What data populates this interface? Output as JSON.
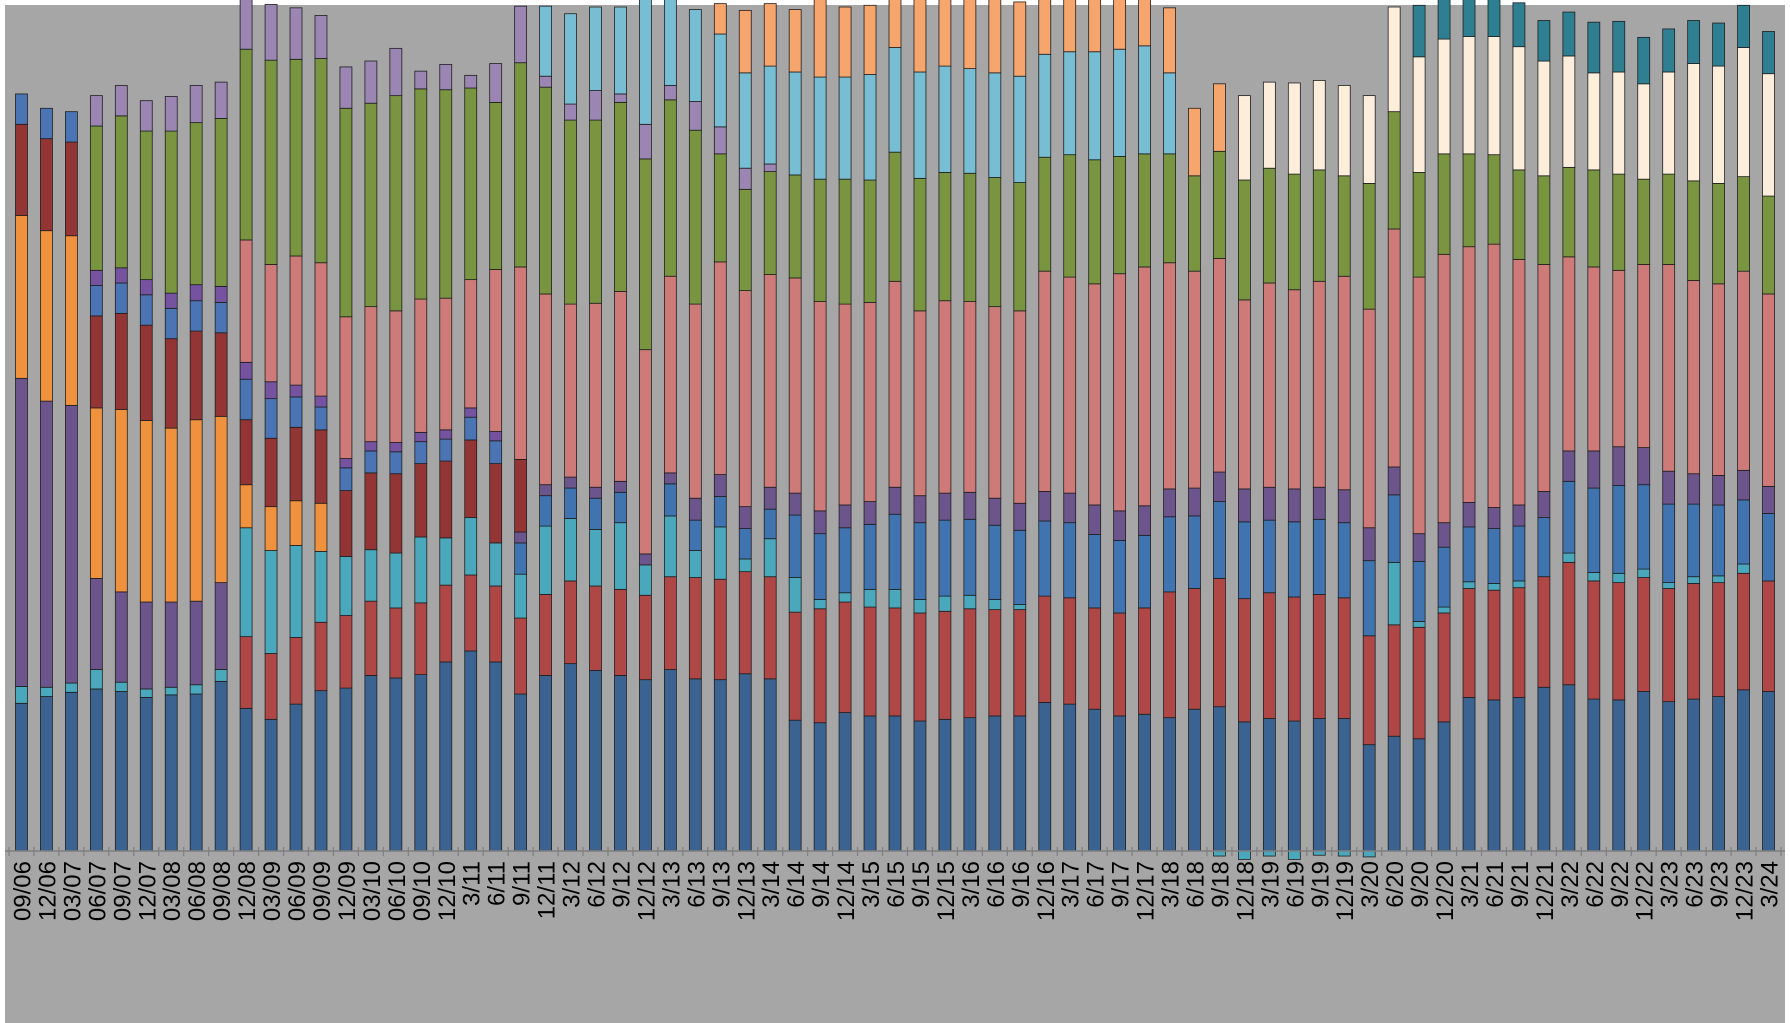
{
  "chart_data": {
    "type": "bar",
    "stacked": true,
    "stack_mode": "percent",
    "ylim": [
      0,
      100
    ],
    "grid": false,
    "legend": "none",
    "title": "",
    "xlabel": "",
    "ylabel": "",
    "colors": {
      "plot_background": "#a6a6a6",
      "axis": "#7f7f7f",
      "bar_outline": "#1f1f1f"
    },
    "categories": [
      "09/06",
      "12/06",
      "03/07",
      "06/07",
      "09/07",
      "12/07",
      "03/08",
      "06/08",
      "09/08",
      "12/08",
      "03/09",
      "06/09",
      "09/09",
      "12/09",
      "03/10",
      "06/10",
      "09/10",
      "12/10",
      "3/11",
      "6/11",
      "9/11",
      "12/11",
      "3/12",
      "6/12",
      "9/12",
      "12/12",
      "3/13",
      "6/13",
      "9/13",
      "12/13",
      "3/14",
      "6/14",
      "9/14",
      "12/14",
      "3/15",
      "6/15",
      "9/15",
      "12/15",
      "3/16",
      "6/16",
      "9/16",
      "12/16",
      "3/17",
      "6/17",
      "9/17",
      "12/17",
      "3/18",
      "6/18",
      "9/18",
      "12/18",
      "3/19",
      "6/19",
      "9/19",
      "12/19",
      "3/20",
      "6/20",
      "9/20",
      "12/20",
      "3/21",
      "6/21",
      "9/21",
      "12/21",
      "3/22",
      "6/22",
      "9/22",
      "12/22",
      "3/23",
      "6/23",
      "9/23",
      "12/23",
      "3/24"
    ],
    "series": [
      {
        "color": "#3b6391",
        "values": [
          17.5,
          18.3,
          18.8,
          19.2,
          18.9,
          18.2,
          18.5,
          18.6,
          20.1,
          16.9,
          15.6,
          17.4,
          19.0,
          19.3,
          20.8,
          20.5,
          20.9,
          22.4,
          23.7,
          22.4,
          18.6,
          20.8,
          22.2,
          21.4,
          20.8,
          20.3,
          21.5,
          20.4,
          20.3,
          21.0,
          20.4,
          15.5,
          15.2,
          16.4,
          16.0,
          16.0,
          15.4,
          15.6,
          15.8,
          16.0,
          16.0,
          17.6,
          17.4,
          16.8,
          16.0,
          16.2,
          15.8,
          16.8,
          17.1,
          15.3,
          15.7,
          15.4,
          15.7,
          15.7,
          12.6,
          13.6,
          13.3,
          15.3,
          18.2,
          17.9,
          18.2,
          19.4,
          19.7,
          18.0,
          17.9,
          18.9,
          17.7,
          18.0,
          18.3,
          19.1,
          18.9
        ]
      },
      {
        "color": "#b04747",
        "values": [
          0,
          0,
          0,
          0,
          0,
          0,
          0,
          0,
          0,
          8.5,
          7.8,
          7.9,
          8.1,
          8.6,
          8.8,
          8.3,
          8.5,
          9.1,
          9.0,
          9.0,
          9.0,
          9.6,
          9.8,
          10.0,
          10.2,
          10.0,
          11.0,
          12.0,
          11.9,
          12.1,
          12.1,
          12.8,
          13.5,
          13.1,
          12.9,
          12.8,
          12.8,
          12.8,
          12.9,
          12.6,
          12.6,
          12.6,
          12.6,
          12.0,
          12.2,
          12.6,
          14.9,
          14.3,
          15.2,
          14.6,
          14.9,
          14.7,
          14.7,
          14.3,
          12.9,
          13.2,
          13.2,
          12.9,
          12.9,
          13.0,
          13.0,
          13.1,
          14.5,
          14.0,
          13.9,
          13.5,
          13.4,
          13.7,
          13.5,
          13.8,
          13.1
        ]
      },
      {
        "color": "#4aa8bc",
        "values": [
          2.0,
          1.1,
          1.1,
          2.3,
          1.1,
          1.0,
          0.9,
          1.1,
          1.4,
          12.9,
          12.2,
          10.9,
          8.4,
          7.0,
          6.1,
          6.5,
          7.8,
          5.6,
          6.8,
          5.1,
          5.2,
          8.1,
          7.4,
          6.7,
          7.9,
          3.6,
          7.2,
          3.2,
          6.2,
          1.5,
          4.5,
          4.1,
          1.1,
          1.1,
          2.1,
          2.2,
          1.6,
          1.8,
          1.6,
          1.2,
          0.6,
          0,
          0,
          0,
          0,
          0,
          0,
          0,
          -0.6,
          -1.0,
          -0.6,
          -1.0,
          -0.5,
          -0.6,
          -0.7,
          7.4,
          0.7,
          0.7,
          0.8,
          0.8,
          0.8,
          0,
          1.1,
          1.0,
          1.1,
          1.0,
          0.7,
          0.8,
          0.8,
          1.1,
          0
        ]
      },
      {
        "color": "#3f74b0",
        "values": [
          0,
          0,
          0,
          0,
          0,
          0,
          0,
          0,
          0,
          0,
          0,
          0,
          0,
          0,
          0,
          0,
          0,
          0,
          0,
          0,
          3.7,
          3.6,
          3.6,
          3.7,
          3.6,
          0,
          3.8,
          3.6,
          3.6,
          3.6,
          3.5,
          7.4,
          7.8,
          7.7,
          7.7,
          8.9,
          9.1,
          9.0,
          9.0,
          8.8,
          8.8,
          8.9,
          8.9,
          8.7,
          8.6,
          8.6,
          8.9,
          8.6,
          9.1,
          9.1,
          8.6,
          8.9,
          8.9,
          8.9,
          8.9,
          8.0,
          7.1,
          7.1,
          6.5,
          6.5,
          6.5,
          7.0,
          8.5,
          10.0,
          10.4,
          10.0,
          9.3,
          8.6,
          8.4,
          7.6,
          8.0
        ]
      },
      {
        "color": "#6c548c",
        "values": [
          36.5,
          33.9,
          32.9,
          10.8,
          10.7,
          10.3,
          10.1,
          9.9,
          10.3,
          0,
          0,
          0,
          0,
          0,
          0,
          0,
          0,
          0,
          0,
          0,
          1.3,
          1.3,
          1.3,
          1.3,
          1.3,
          1.3,
          1.3,
          2.6,
          2.6,
          2.6,
          2.6,
          2.6,
          2.7,
          2.7,
          2.7,
          3.2,
          3.2,
          3.2,
          3.2,
          3.2,
          3.2,
          3.5,
          3.5,
          3.5,
          3.5,
          3.5,
          3.3,
          3.3,
          3.5,
          3.9,
          3.9,
          3.9,
          3.8,
          3.9,
          3.9,
          3.3,
          3.3,
          2.9,
          2.9,
          2.5,
          2.5,
          3.1,
          3.6,
          4.4,
          4.6,
          4.4,
          3.9,
          3.6,
          3.5,
          3.5,
          3.2
        ]
      },
      {
        "color": "#f0913d",
        "values": [
          19.3,
          20.2,
          20.1,
          20.2,
          21.6,
          21.5,
          20.6,
          21.5,
          19.7,
          5.1,
          5.2,
          5.3,
          5.7,
          0,
          0,
          0,
          0,
          0,
          0,
          0,
          0,
          0,
          0,
          0,
          0,
          0,
          0,
          0,
          0,
          0,
          0,
          0,
          0,
          0,
          0,
          0,
          0,
          0,
          0,
          0,
          0,
          0,
          0,
          0,
          0,
          0,
          0,
          0,
          0,
          0,
          0,
          0,
          0,
          0,
          0,
          0,
          0,
          0,
          0,
          0,
          0,
          0,
          0,
          0,
          0,
          0,
          0,
          0,
          0,
          0,
          0
        ]
      },
      {
        "color": "#943535",
        "values": [
          10.8,
          10.9,
          11.1,
          10.9,
          11.4,
          11.3,
          10.6,
          10.5,
          9.9,
          7.7,
          8.1,
          8.7,
          8.7,
          7.8,
          9.1,
          9.4,
          8.7,
          9.1,
          9.2,
          9.4,
          8.6,
          0,
          0,
          0,
          0,
          0,
          0,
          0,
          0,
          0,
          0,
          0,
          0,
          0,
          0,
          0,
          0,
          0,
          0,
          0,
          0,
          0,
          0,
          0,
          0,
          0,
          0,
          0,
          0,
          0,
          0,
          0,
          0,
          0,
          0,
          0,
          0,
          0,
          0,
          0,
          0,
          0,
          0,
          0,
          0,
          0,
          0,
          0,
          0,
          0,
          0
        ]
      },
      {
        "color": "#4a74b4",
        "values": [
          3.6,
          3.6,
          3.6,
          3.6,
          3.6,
          3.6,
          3.6,
          3.6,
          3.6,
          4.8,
          4.7,
          3.6,
          2.7,
          2.7,
          2.6,
          2.6,
          2.6,
          2.6,
          2.7,
          2.7,
          0,
          0,
          0,
          0,
          0,
          0,
          0,
          0,
          0,
          0,
          0,
          0,
          0,
          0,
          0,
          0,
          0,
          0,
          0,
          0,
          0,
          0,
          0,
          0,
          0,
          0,
          0,
          0,
          0,
          0,
          0,
          0,
          0,
          0,
          0,
          0,
          0,
          0,
          0,
          0,
          0,
          0,
          0,
          0,
          0,
          0,
          0,
          0,
          0,
          0,
          0
        ]
      },
      {
        "color": "#7553a0",
        "values": [
          0,
          0,
          0,
          1.8,
          1.8,
          1.8,
          1.8,
          1.9,
          1.9,
          2.0,
          2.0,
          1.4,
          1.3,
          1.1,
          1.1,
          1.1,
          1.1,
          1.1,
          1.1,
          1.1,
          0,
          0,
          0,
          0,
          0,
          0,
          0,
          0,
          0,
          0,
          0,
          0,
          0,
          0,
          0,
          0,
          0,
          0,
          0,
          0,
          0,
          0,
          0,
          0,
          0,
          0,
          0,
          0,
          0,
          0,
          0,
          0,
          0,
          0,
          0,
          0,
          0,
          0,
          0,
          0,
          0,
          0,
          0,
          0,
          0,
          0,
          0,
          0,
          0,
          0,
          0
        ]
      },
      {
        "color": "#cd7a78",
        "values": [
          0,
          0,
          0,
          0,
          0,
          0,
          0,
          0,
          0,
          14.5,
          13.9,
          15.3,
          15.8,
          16.8,
          16.0,
          15.6,
          15.8,
          15.6,
          15.2,
          19.2,
          22.8,
          22.6,
          20.5,
          21.8,
          22.5,
          24.2,
          23.3,
          23.0,
          25.2,
          25.6,
          25.2,
          25.5,
          24.8,
          23.8,
          23.6,
          24.4,
          21.9,
          22.8,
          22.6,
          22.7,
          22.8,
          26.1,
          25.6,
          26.2,
          28.1,
          28.3,
          26.8,
          25.7,
          25.3,
          22.4,
          24.2,
          23.6,
          24.4,
          25.3,
          25.9,
          28.2,
          30.4,
          31.8,
          30.3,
          31.2,
          29.1,
          26.9,
          23.0,
          21.8,
          20.9,
          21.7,
          24.5,
          22.9,
          22.7,
          23.6,
          22.8
        ]
      },
      {
        "color": "#799540",
        "values": [
          0,
          0,
          0,
          17.1,
          18.0,
          17.6,
          19.2,
          19.2,
          19.9,
          22.6,
          24.2,
          23.3,
          24.2,
          24.7,
          24.1,
          25.5,
          24.9,
          24.7,
          22.7,
          19.8,
          24.2,
          24.5,
          21.8,
          21.7,
          22.4,
          22.6,
          20.9,
          20.6,
          12.8,
          12.0,
          12.2,
          12.2,
          14.5,
          14.8,
          14.5,
          15.3,
          15.7,
          15.2,
          15.2,
          15.3,
          15.2,
          13.5,
          14.5,
          14.7,
          13.9,
          13.4,
          12.9,
          11.3,
          12.7,
          14.2,
          13.6,
          13.7,
          13.2,
          11.9,
          14.9,
          13.9,
          12.4,
          11.9,
          11.0,
          10.6,
          10.6,
          10.5,
          10.6,
          11.5,
          11.4,
          10.1,
          10.7,
          11.8,
          11.9,
          11.2,
          11.6
        ]
      },
      {
        "color": "#9a85b3",
        "values": [
          0,
          0,
          0,
          3.6,
          3.6,
          3.6,
          4.1,
          4.4,
          4.3,
          6.2,
          6.6,
          6.1,
          5.1,
          4.9,
          5.0,
          5.6,
          2.1,
          3.0,
          1.5,
          4.6,
          6.7,
          1.3,
          1.9,
          3.5,
          1.0,
          4.1,
          1.7,
          3.4,
          3.2,
          2.5,
          0.9,
          0,
          0,
          0,
          0,
          0,
          0,
          0,
          0,
          0,
          0,
          0,
          0,
          0,
          0,
          0,
          0,
          0,
          0,
          0,
          0,
          0,
          0,
          0,
          0,
          0,
          0,
          0,
          0,
          0,
          0,
          0,
          0,
          0,
          0,
          0,
          0,
          0,
          0,
          0,
          0
        ]
      },
      {
        "color": "#77bdd3",
        "values": [
          0,
          0,
          0,
          0,
          0,
          0,
          0,
          0,
          0,
          0,
          0,
          0,
          0,
          0,
          0,
          0,
          0,
          0,
          0,
          0,
          0,
          8.3,
          10.7,
          9.9,
          10.3,
          15.9,
          10.5,
          10.9,
          11.0,
          11.3,
          11.6,
          12.2,
          12.1,
          12.1,
          12.5,
          12.4,
          12.6,
          12.6,
          12.4,
          12.4,
          12.6,
          12.2,
          12.2,
          12.8,
          12.7,
          12.8,
          9.6,
          0,
          0,
          0,
          0,
          0,
          0,
          0,
          0,
          0,
          0,
          0,
          0,
          0,
          0,
          0,
          0,
          0,
          0,
          0,
          0,
          0,
          0,
          0,
          0
        ]
      },
      {
        "color": "#f6a56d",
        "values": [
          0,
          0,
          0,
          0,
          0,
          0,
          0,
          0,
          0,
          0,
          0,
          0,
          0,
          0,
          0,
          0,
          0,
          0,
          0,
          0,
          0,
          0,
          0,
          0,
          0,
          0,
          0,
          0,
          3.6,
          7.4,
          7.4,
          7.4,
          9.2,
          8.3,
          8.2,
          8.2,
          8.7,
          8.6,
          9.2,
          9.4,
          8.8,
          8.9,
          8.8,
          8.5,
          7.7,
          7.7,
          7.7,
          8.0,
          8.0,
          0,
          0,
          0,
          0,
          0,
          0,
          0,
          0,
          0,
          0,
          0,
          0,
          0,
          0,
          0,
          0,
          0,
          0,
          0,
          0,
          0,
          0
        ]
      },
      {
        "color": "#fdeedc",
        "values": [
          0,
          0,
          0,
          0,
          0,
          0,
          0,
          0,
          0,
          0,
          0,
          0,
          0,
          0,
          0,
          0,
          0,
          0,
          0,
          0,
          0,
          0,
          0,
          0,
          0,
          0,
          0,
          0,
          0,
          0,
          0,
          0,
          0,
          0,
          0,
          0,
          0,
          0,
          0,
          0,
          0,
          0,
          0,
          0,
          0,
          0,
          0,
          0,
          0,
          10.0,
          10.2,
          10.8,
          10.6,
          10.7,
          10.4,
          12.4,
          13.7,
          13.6,
          13.9,
          14.0,
          14.6,
          13.6,
          13.2,
          11.5,
          12.1,
          11.3,
          12.1,
          13.9,
          13.9,
          15.3,
          14.5
        ]
      },
      {
        "color": "#2f7f93",
        "values": [
          0,
          0,
          0,
          0,
          0,
          0,
          0,
          0,
          0,
          0,
          0,
          0,
          0,
          0,
          0,
          0,
          0,
          0,
          0,
          0,
          0,
          0,
          0,
          0,
          0,
          0,
          0,
          0,
          0,
          0,
          0,
          0,
          0,
          0,
          0,
          0,
          0,
          0,
          0,
          0,
          0,
          0,
          0,
          0,
          0,
          0,
          0,
          0,
          0,
          0,
          0,
          0,
          0,
          0,
          0,
          0,
          6.1,
          5.2,
          5.2,
          5.2,
          5.2,
          4.8,
          5.2,
          6.0,
          6.0,
          5.5,
          5.1,
          5.1,
          5.1,
          5.0,
          5.0
        ]
      }
    ]
  }
}
